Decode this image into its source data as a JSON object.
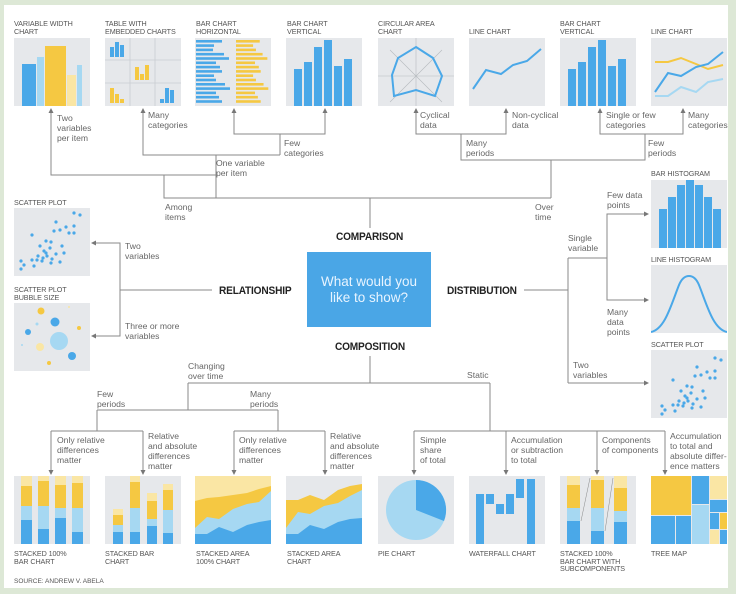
{
  "center_question": "What would you\nlike to show?",
  "categories": {
    "comparison": "COMPARISON",
    "relationship": "RELATIONSHIP",
    "distribution": "DISTRIBUTION",
    "composition": "COMPOSITION"
  },
  "comparison": {
    "charts": [
      {
        "title": "VARIABLE WIDTH\nCHART"
      },
      {
        "title": "TABLE WITH\nEMBEDDED CHARTS"
      },
      {
        "title": "BAR CHART\nHORIZONTAL"
      },
      {
        "title": "BAR CHART\nVERTICAL"
      },
      {
        "title": "CIRCULAR AREA\nCHART"
      },
      {
        "title": "LINE CHART"
      },
      {
        "title": "BAR CHART\nVERTICAL"
      },
      {
        "title": "LINE CHART"
      }
    ],
    "notes": {
      "two_variables_per_item": "Two\nvariables\nper item",
      "many_categories_1": "Many\ncategories",
      "few_categories": "Few\ncategories",
      "one_variable_per_item": "One variable\nper item",
      "among_items": "Among\nitems",
      "cyclical": "Cyclical\ndata",
      "non_cyclical": "Non-cyclical\ndata",
      "single_or_few": "Single or few\ncategories",
      "many_categories_2": "Many\ncategories",
      "many_periods": "Many\nperiods",
      "few_periods": "Few\nperiods",
      "over_time": "Over\ntime"
    }
  },
  "relationship": {
    "charts": [
      {
        "title": "SCATTER PLOT"
      },
      {
        "title": "SCATTER PLOT\nBUBBLE SIZE"
      }
    ],
    "notes": {
      "two_variables": "Two\nvariables",
      "three_or_more": "Three or more\nvariables"
    }
  },
  "distribution": {
    "charts": [
      {
        "title": "BAR HISTOGRAM"
      },
      {
        "title": "LINE HISTOGRAM"
      },
      {
        "title": "SCATTER PLOT"
      }
    ],
    "notes": {
      "single_variable": "Single\nvariable",
      "few_data_points": "Few data\npoints",
      "many_data_points": "Many\ndata\npoints",
      "two_variables": "Two\nvariables"
    }
  },
  "composition": {
    "charts": [
      {
        "title": "STACKED 100%\nBAR CHART"
      },
      {
        "title": "STACKED BAR\nCHART"
      },
      {
        "title": "STACKED AREA\n100% CHART"
      },
      {
        "title": "STACKED AREA\nCHART"
      },
      {
        "title": "PIE CHART"
      },
      {
        "title": "WATERFALL CHART"
      },
      {
        "title": "STACKED 100%\nBAR CHART WITH\nSUBCOMPONENTS"
      },
      {
        "title": "TREE MAP"
      }
    ],
    "notes": {
      "changing_over_time": "Changing\nover time",
      "static": "Static",
      "few_periods": "Few\nperiods",
      "many_periods": "Many\nperiods",
      "only_relative_1": "Only relative\ndifferences\nmatter",
      "rel_abs_1": "Relative\nand absolute\ndifferences\nmatter",
      "only_relative_2": "Only relative\ndifferences\nmatter",
      "rel_abs_2": "Relative\nand absolute\ndifferences\nmatter",
      "simple_share": "Simple\nshare\nof total",
      "accumulation_subtraction": "Accumulation\nor subtraction\nto total",
      "components_of_components": "Components\nof components",
      "accumulation_absolute": "Accumulation\nto total and\nabsolute differ-\nence matters"
    }
  },
  "source": "SOURCE: ANDREW V. ABELA",
  "colors": {
    "blue": "#4aa8e8",
    "light_blue": "#a6d8f2",
    "yellow": "#f5c842",
    "light_yellow": "#fae6a4",
    "thumb_bg": "#e6e8eb",
    "center_box": "#4aa6e6"
  }
}
